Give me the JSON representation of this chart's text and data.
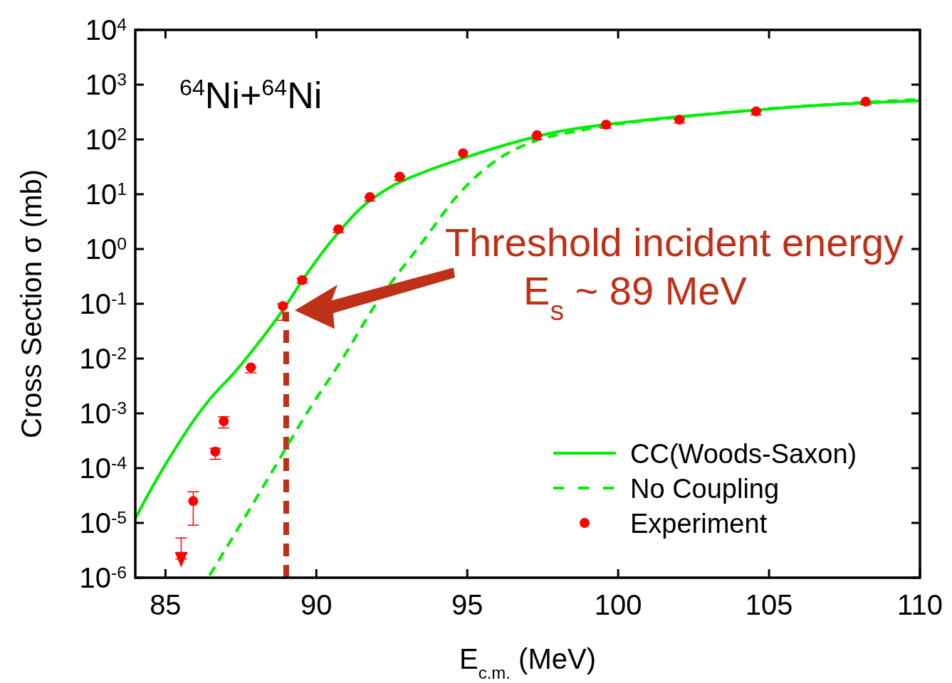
{
  "chart_data": {
    "type": "line",
    "title": "$^{64}$Ni+$^{64}$Ni",
    "xlabel": "E$_{c.m.}$ (MeV)",
    "ylabel": "Cross Section σ (mb)",
    "log": "y",
    "xlim": [
      84,
      110
    ],
    "ylim": [
      1e-06,
      10000
    ],
    "xticks": [
      85,
      90,
      95,
      100,
      105,
      110
    ],
    "yticks": [
      {
        "value": 1e-06,
        "label": "10$^{-6}$"
      },
      {
        "value": 1e-05,
        "label": "10$^{-5}$"
      },
      {
        "value": 0.0001,
        "label": "10$^{-4}$"
      },
      {
        "value": 0.001,
        "label": "10$^{-3}$"
      },
      {
        "value": 0.01,
        "label": "10$^{-2}$"
      },
      {
        "value": 0.1,
        "label": "10$^{-1}$"
      },
      {
        "value": 1,
        "label": "10$^{0}$"
      },
      {
        "value": 10,
        "label": "10$^{1}$"
      },
      {
        "value": 100,
        "label": "10$^{2}$"
      },
      {
        "value": 1000,
        "label": "10$^{3}$"
      },
      {
        "value": 10000,
        "label": "10$^{4}$"
      }
    ],
    "grid": false,
    "legend": "bottom right",
    "series": [
      {
        "name": "CC(Woods-Saxon)",
        "color": "#00ee00",
        "line_style": "solid",
        "marker": "none",
        "x": [
          84,
          84.53,
          85.33,
          85.95,
          86.5,
          87.29,
          88.07,
          88.87,
          89.56,
          90.73,
          91.46,
          92.45,
          93.54,
          94.9,
          96.0,
          97.9,
          100.7,
          103.6,
          106.4,
          110
        ],
        "values": [
          1.2e-05,
          4.2e-05,
          0.00023,
          0.00076,
          0.0019,
          0.0056,
          0.019,
          0.074,
          0.28,
          2.0,
          5.5,
          13.5,
          25,
          46,
          72,
          135,
          220,
          310,
          410,
          510
        ]
      },
      {
        "name": "No Coupling",
        "color": "#00ee00",
        "line_style": "dashed",
        "marker": "none",
        "x": [
          86.46,
          87.45,
          88.4,
          89.81,
          90.82,
          91.93,
          93.54,
          94.65,
          95.55,
          96.44,
          97.24,
          98.85,
          102.6,
          110
        ],
        "values": [
          1.1e-06,
          8.7e-06,
          6.5e-05,
          0.0013,
          0.0091,
          0.091,
          1.4,
          9.1,
          28,
          60,
          93,
          150,
          275,
          540
        ]
      },
      {
        "name": "Experiment",
        "type": "scatter",
        "color": "#ff0000",
        "marker": "circle",
        "x": [
          85.92,
          86.65,
          86.93,
          87.83,
          88.89,
          89.53,
          90.73,
          91.77,
          92.76,
          94.86,
          97.31,
          99.6,
          102.03,
          104.57,
          108.2
        ],
        "values": [
          2.5e-05,
          0.0002,
          0.00072,
          0.0069,
          0.091,
          0.27,
          2.3,
          8.9,
          21,
          56,
          120,
          186,
          230,
          325,
          490
        ],
        "errors": [
          [
            9.1e-06,
            3.7e-05
          ],
          [
            0.000145,
            0.00023
          ],
          [
            0.00054,
            0.00087
          ],
          [
            0.0055,
            0.0069
          ],
          [
            0.05,
            0.1
          ],
          [
            0.24,
            0.29
          ],
          [
            2.0,
            2.3
          ],
          [
            7.5,
            8.9
          ],
          [
            18,
            21
          ],
          null,
          [
            100,
            120
          ],
          [
            160,
            186
          ],
          [
            200,
            230
          ],
          [
            280,
            325
          ],
          [
            430,
            490
          ]
        ]
      },
      {
        "type": "scatter",
        "color": "#ff0000",
        "marker": "triangle",
        "x": [
          85.52
        ],
        "values": [
          2.2e-06
        ],
        "errors": [
          [
            2.2e-06,
            5.3e-06
          ]
        ]
      }
    ],
    "ref_lines": [
      {
        "axis": "x",
        "value": 89,
        "color": "#bf3018",
        "line_style": "dashed"
      }
    ],
    "annotations": [
      "Threshold incident energy",
      "E$_{s}$ ~ 89 MeV"
    ]
  }
}
